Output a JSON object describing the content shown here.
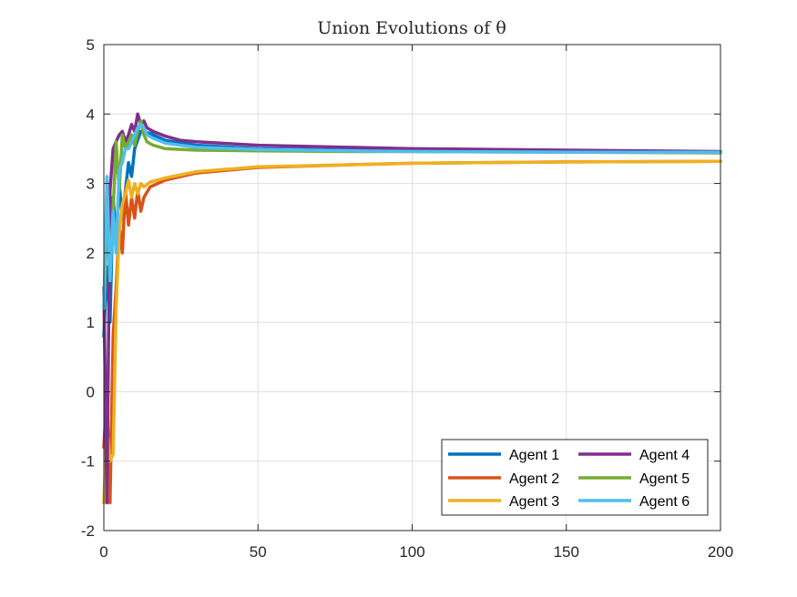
{
  "chart_data": {
    "type": "line",
    "title": "Union Evolutions of θ",
    "xlabel": "",
    "ylabel": "",
    "xlim": [
      0,
      200
    ],
    "ylim": [
      -2,
      5
    ],
    "xticks": [
      "0",
      "50",
      "100",
      "150",
      "200"
    ],
    "yticks": [
      "-2",
      "-1",
      "0",
      "1",
      "2",
      "3",
      "4",
      "5"
    ],
    "grid": true,
    "legend": {
      "placement": "bottom-right",
      "columns": 2
    },
    "series": [
      {
        "name": "Agent 1",
        "color": "#0072BD",
        "x": [
          0,
          1,
          2,
          3,
          4,
          5,
          6,
          7,
          8,
          9,
          10,
          12,
          15,
          20,
          30,
          50,
          80,
          100,
          150,
          200
        ],
        "y": [
          0.8,
          1.8,
          1.0,
          2.8,
          2.2,
          3.0,
          2.5,
          2.9,
          3.3,
          3.1,
          3.5,
          3.75,
          3.72,
          3.62,
          3.55,
          3.5,
          3.48,
          3.47,
          3.46,
          3.45
        ]
      },
      {
        "name": "Agent 2",
        "color": "#D95319",
        "x": [
          0,
          1,
          2,
          3,
          4,
          5,
          6,
          7,
          8,
          9,
          10,
          11,
          12,
          13,
          15,
          20,
          30,
          50,
          80,
          100,
          150,
          200
        ],
        "y": [
          -0.8,
          0.0,
          -1.6,
          0.8,
          1.5,
          2.4,
          2.0,
          2.9,
          2.4,
          2.8,
          2.5,
          2.9,
          2.6,
          2.8,
          2.95,
          3.05,
          3.15,
          3.23,
          3.27,
          3.29,
          3.31,
          3.32
        ]
      },
      {
        "name": "Agent 3",
        "color": "#EDB120",
        "x": [
          0,
          1,
          2,
          3,
          4,
          5,
          6,
          7,
          8,
          9,
          10,
          11,
          12,
          13,
          15,
          20,
          30,
          50,
          80,
          100,
          150,
          200
        ],
        "y": [
          -1.6,
          -0.5,
          -1.0,
          -0.9,
          1.2,
          2.3,
          2.7,
          2.85,
          3.05,
          2.8,
          3.0,
          2.85,
          3.0,
          2.95,
          3.02,
          3.08,
          3.17,
          3.24,
          3.27,
          3.29,
          3.31,
          3.32
        ]
      },
      {
        "name": "Agent 4",
        "color": "#7E2F8E",
        "x": [
          0,
          1,
          2,
          3,
          4,
          5,
          6,
          7,
          8,
          9,
          10,
          11,
          12,
          13,
          14,
          16,
          20,
          25,
          30,
          50,
          80,
          100,
          150,
          200
        ],
        "y": [
          1.5,
          -1.6,
          2.9,
          3.5,
          3.6,
          3.7,
          3.75,
          3.6,
          3.7,
          3.85,
          3.75,
          4.0,
          3.85,
          3.9,
          3.8,
          3.75,
          3.68,
          3.62,
          3.6,
          3.55,
          3.52,
          3.5,
          3.48,
          3.46
        ]
      },
      {
        "name": "Agent 5",
        "color": "#77AC30",
        "x": [
          0,
          1,
          2,
          3,
          4,
          5,
          6,
          7,
          8,
          9,
          10,
          11,
          12,
          13,
          14,
          16,
          20,
          30,
          50,
          80,
          100,
          150,
          200
        ],
        "y": [
          1.2,
          2.4,
          1.8,
          2.6,
          3.6,
          2.9,
          3.7,
          3.5,
          3.6,
          3.7,
          3.55,
          3.75,
          3.9,
          3.7,
          3.6,
          3.55,
          3.5,
          3.48,
          3.47,
          3.46,
          3.46,
          3.45,
          3.44
        ]
      },
      {
        "name": "Agent 6",
        "color": "#4DBEEE",
        "x": [
          0,
          1,
          2,
          3,
          4,
          5,
          6,
          7,
          8,
          9,
          10,
          11,
          12,
          13,
          14,
          16,
          20,
          30,
          50,
          80,
          100,
          150,
          200
        ],
        "y": [
          1.2,
          3.1,
          1.6,
          2.6,
          2.0,
          3.2,
          3.3,
          3.5,
          3.5,
          3.6,
          3.7,
          3.8,
          3.85,
          3.8,
          3.7,
          3.65,
          3.58,
          3.52,
          3.49,
          3.47,
          3.46,
          3.45,
          3.45
        ]
      }
    ]
  }
}
